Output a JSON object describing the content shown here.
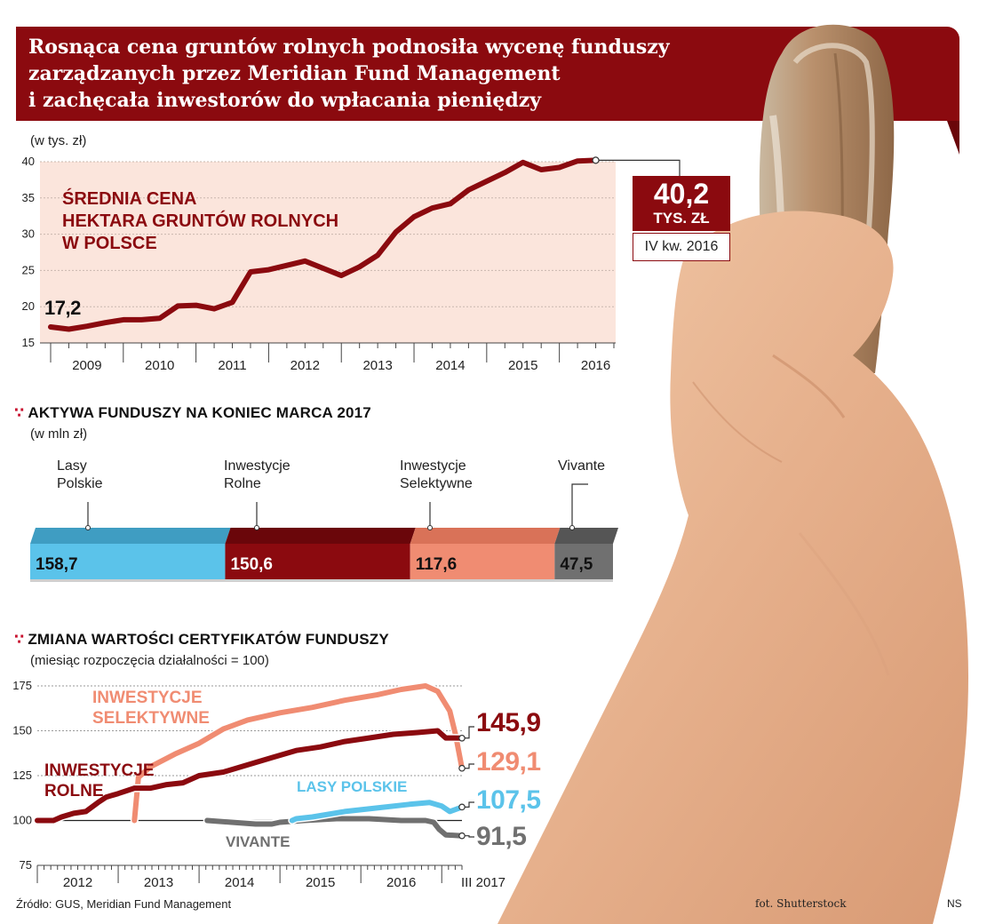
{
  "header": {
    "title_line1": "Rosnąca cena gruntów rolnych podnosiła wycenę funduszy",
    "title_line2": "zarządzanych przez Meridian Fund Management",
    "title_line3": "i zachęcała inwestorów do wpłacania pieniędzy"
  },
  "price_chart": {
    "unit": "(w tys. zł)",
    "heading_line1": "Średnia cena",
    "heading_line2": "hektara gruntów rolnych",
    "heading_line3": "w Polsce",
    "start_label": "17,2",
    "callout_value": "40,2",
    "callout_unit": "TYS. ZŁ",
    "callout_period": "IV kw. 2016"
  },
  "assets_chart": {
    "dots": "∵",
    "title": "Aktywa funduszy na koniec marca 2017",
    "unit": "(w mln zł)",
    "labels": {
      "lasy_line1": "Lasy",
      "lasy_line2": "Polskie",
      "rolne_line1": "Inwestycje",
      "rolne_line2": "Rolne",
      "sel_line1": "Inwestycje",
      "sel_line2": "Selektywne",
      "viv_line1": "Vivante"
    }
  },
  "cert_chart": {
    "dots": "∵",
    "title": "Zmiana wartości certyfikatów funduszy",
    "unit": "(miesiąc rozpoczęcia działalności = 100)",
    "names": {
      "sel_line1": "Inwestycje",
      "sel_line2": "Selektywne",
      "rolne_line1": "Inwestycje",
      "rolne_line2": "Rolne",
      "lasy": "Lasy Polskie",
      "viv": "Vivante"
    },
    "end_values": {
      "rolne": "145,9",
      "sel": "129,1",
      "lasy": "107,5",
      "viv": "91,5"
    }
  },
  "footer": {
    "source": "Źródło: GUS, Meridian Fund Management",
    "photo": "fot. Shutterstock",
    "author": "NS"
  },
  "colors": {
    "maroon": "#8b0a0f",
    "blue": "#5bc3ea",
    "salmon": "#f08c72",
    "gray": "#707070",
    "pink_bg": "#fbe5dc"
  },
  "chart_data": [
    {
      "type": "line",
      "title": "Średnia cena hektara gruntów rolnych w Polsce",
      "ylabel": "w tys. zł",
      "ylim": [
        15,
        40
      ],
      "yticks": [
        15,
        20,
        25,
        30,
        35,
        40
      ],
      "year_labels": [
        "2009",
        "2010",
        "2011",
        "2012",
        "2013",
        "2014",
        "2015",
        "2016"
      ],
      "x": [
        2009.0,
        2009.25,
        2009.5,
        2009.75,
        2010.0,
        2010.25,
        2010.5,
        2010.75,
        2011.0,
        2011.25,
        2011.5,
        2011.75,
        2012.0,
        2012.25,
        2012.5,
        2012.75,
        2013.0,
        2013.25,
        2013.5,
        2013.75,
        2014.0,
        2014.25,
        2014.5,
        2014.75,
        2015.0,
        2015.25,
        2015.5,
        2015.75,
        2016.0,
        2016.25,
        2016.5
      ],
      "values": [
        17.2,
        16.9,
        17.3,
        17.8,
        18.2,
        18.2,
        18.4,
        20.1,
        20.2,
        19.7,
        20.6,
        24.8,
        25.1,
        25.7,
        26.3,
        25.3,
        24.3,
        25.5,
        27.1,
        30.3,
        32.4,
        33.6,
        34.2,
        36.1,
        37.3,
        38.5,
        39.9,
        38.9,
        39.2,
        40.1,
        40.2
      ],
      "start_value": 17.2,
      "end_value": 40.2
    },
    {
      "type": "bar",
      "subtype": "stacked-horizontal",
      "title": "Aktywa funduszy na koniec marca 2017",
      "unit": "w mln zł",
      "categories": [
        "Lasy Polskie",
        "Inwestycje Rolne",
        "Inwestycje Selektywne",
        "Vivante"
      ],
      "values": [
        158.7,
        150.6,
        117.6,
        47.5
      ],
      "value_labels": [
        "158,7",
        "150,6",
        "117,6",
        "47,5"
      ]
    },
    {
      "type": "line",
      "title": "Zmiana wartości certyfikatów funduszy",
      "ylabel": "miesiąc rozpoczęcia działalności = 100",
      "ylim": [
        75,
        175
      ],
      "yticks": [
        75,
        100,
        125,
        150,
        175
      ],
      "year_labels": [
        "2012",
        "2013",
        "2014",
        "2015",
        "2016",
        "III 2017"
      ],
      "series": [
        {
          "name": "Inwestycje Selektywne",
          "x": [
            2013.2,
            2013.25,
            2013.4,
            2013.7,
            2014.0,
            2014.3,
            2014.6,
            2015.0,
            2015.4,
            2015.8,
            2016.2,
            2016.5,
            2016.8,
            2016.95,
            2017.1,
            2017.17,
            2017.25
          ],
          "values": [
            100,
            124,
            130,
            137,
            143,
            151,
            156,
            160,
            163,
            167,
            170,
            173,
            175,
            172,
            161,
            148,
            129.1
          ]
        },
        {
          "name": "Inwestycje Rolne",
          "x": [
            2012.0,
            2012.2,
            2012.3,
            2012.45,
            2012.6,
            2012.75,
            2012.85,
            2013.0,
            2013.2,
            2013.4,
            2013.6,
            2013.8,
            2014.0,
            2014.3,
            2014.6,
            2014.9,
            2015.2,
            2015.5,
            2015.8,
            2016.1,
            2016.4,
            2016.7,
            2016.95,
            2017.05,
            2017.15,
            2017.25
          ],
          "values": [
            100,
            100,
            102,
            104,
            105,
            110,
            113,
            115,
            118,
            118,
            120,
            121,
            125,
            127,
            131,
            135,
            139,
            141,
            144,
            146,
            148,
            149,
            150,
            146,
            146,
            145.9
          ]
        },
        {
          "name": "Lasy Polskie",
          "x": [
            2015.15,
            2015.2,
            2015.4,
            2015.8,
            2016.2,
            2016.6,
            2016.85,
            2017.0,
            2017.1,
            2017.25
          ],
          "values": [
            100,
            101,
            102,
            105,
            107,
            109,
            110,
            108,
            105,
            107.5
          ]
        },
        {
          "name": "Vivante",
          "x": [
            2014.1,
            2014.4,
            2014.7,
            2014.9,
            2015.0,
            2015.3,
            2015.7,
            2016.1,
            2016.5,
            2016.8,
            2016.9,
            2016.97,
            2017.05,
            2017.25
          ],
          "values": [
            100,
            99,
            98,
            98,
            99,
            100,
            101,
            101,
            100,
            100,
            99,
            95,
            92,
            91.5
          ]
        }
      ],
      "end_labels": [
        "145,9",
        "129,1",
        "107,5",
        "91,5"
      ]
    }
  ]
}
